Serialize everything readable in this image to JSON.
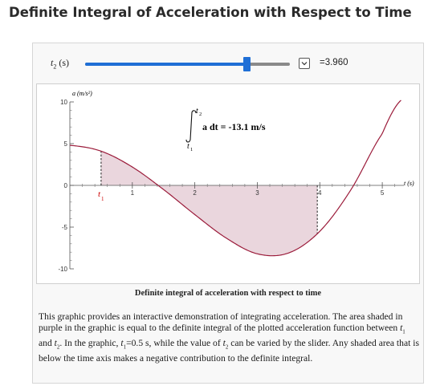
{
  "page": {
    "title": "Definite Integral of Acceleration with Respect to Time"
  },
  "controls": {
    "slider_label_var": "t",
    "slider_label_sub": "2",
    "slider_label_unit": " (s)",
    "slider_value_fraction": 0.79,
    "readout": "=3.960",
    "toggle_icon": "chevron-down-icon"
  },
  "plot": {
    "y_axis_label": "a (m/s²)",
    "x_axis_label": "t (s)",
    "y_ticks": [
      "10",
      "5",
      "0",
      "-5",
      "-10"
    ],
    "x_ticks": [
      "1",
      "2",
      "3",
      "4",
      "5"
    ],
    "t1_label": "t",
    "t1_sub": "1",
    "integral_upper": "t",
    "integral_upper_sub": "2",
    "integral_lower": "t",
    "integral_lower_sub": "1",
    "integral_text": "a dt = -13.1 m/s",
    "colors": {
      "curve": "#9b1b3a",
      "shade": "#ead6dd",
      "t1_label": "#cc0000"
    }
  },
  "chart_data": {
    "type": "line",
    "title": "",
    "xlabel": "t (s)",
    "ylabel": "a (m/s²)",
    "xlim": [
      0,
      5.5
    ],
    "ylim": [
      -10,
      10
    ],
    "t1": 0.5,
    "t2": 3.96,
    "integral": -13.1,
    "x": [
      0,
      0.5,
      1.0,
      1.5,
      2.0,
      2.5,
      3.0,
      3.5,
      4.0,
      4.5,
      5.0,
      5.3
    ],
    "y": [
      4.8,
      4.1,
      2.2,
      -0.5,
      -3.5,
      -6.3,
      -8.2,
      -8.1,
      -5.5,
      -0.5,
      6.2,
      10.2
    ],
    "shaded": true
  },
  "caption": "Definite integral of acceleration with respect to time",
  "description": {
    "p1": "This graphic provides an interactive demonstration of integrating acceleration. The area shaded in purple in the graphic is equal to the definite integral of the plotted acceleration function between ",
    "v1": "t",
    "v1_sub": "1",
    "and": " and ",
    "v2": "t",
    "v2_sub": "2",
    "p2": ". In the graphic, ",
    "v3": "t",
    "v3_sub": "1",
    "p3": "=0.5 s, while the value of ",
    "v4": "t",
    "v4_sub": "2",
    "p4": " can be varied by the slider. Any shaded area that is below the time axis makes a negative contribution to the definite integral."
  }
}
